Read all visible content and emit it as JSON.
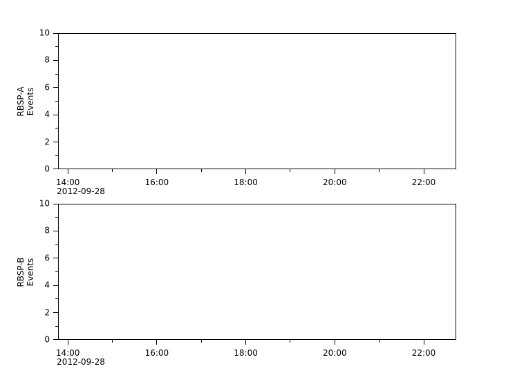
{
  "figure": {
    "background": "#ffffff",
    "axis_color": "#000000",
    "text_color": "#000000"
  },
  "chart_data": [
    {
      "type": "line",
      "title": "",
      "ylabel_lines": [
        "RBSP-A",
        "Events"
      ],
      "xlabel": "",
      "x_axis": {
        "kind": "time",
        "date_label": "2012-09-28",
        "range_hours": [
          13.78,
          22.73
        ],
        "major_ticks": [
          {
            "value": 14,
            "label": "14:00"
          },
          {
            "value": 16,
            "label": "16:00"
          },
          {
            "value": 18,
            "label": "18:00"
          },
          {
            "value": 20,
            "label": "20:00"
          },
          {
            "value": 22,
            "label": "22:00"
          }
        ],
        "minor_ticks": [
          15,
          17,
          19,
          21
        ]
      },
      "y_axis": {
        "range": [
          0,
          10
        ],
        "major_ticks": [
          {
            "value": 0,
            "label": "0"
          },
          {
            "value": 2,
            "label": "2"
          },
          {
            "value": 4,
            "label": "4"
          },
          {
            "value": 6,
            "label": "6"
          },
          {
            "value": 8,
            "label": "8"
          },
          {
            "value": 10,
            "label": "10"
          }
        ],
        "minor_ticks": [
          1,
          3,
          5,
          7,
          9
        ]
      },
      "grid": false,
      "legend": null,
      "series": []
    },
    {
      "type": "line",
      "title": "",
      "ylabel_lines": [
        "RBSP-B",
        "Events"
      ],
      "xlabel": "",
      "x_axis": {
        "kind": "time",
        "date_label": "2012-09-28",
        "range_hours": [
          13.78,
          22.73
        ],
        "major_ticks": [
          {
            "value": 14,
            "label": "14:00"
          },
          {
            "value": 16,
            "label": "16:00"
          },
          {
            "value": 18,
            "label": "18:00"
          },
          {
            "value": 20,
            "label": "20:00"
          },
          {
            "value": 22,
            "label": "22:00"
          }
        ],
        "minor_ticks": [
          15,
          17,
          19,
          21
        ]
      },
      "y_axis": {
        "range": [
          0,
          10
        ],
        "major_ticks": [
          {
            "value": 0,
            "label": "0"
          },
          {
            "value": 2,
            "label": "2"
          },
          {
            "value": 4,
            "label": "4"
          },
          {
            "value": 6,
            "label": "6"
          },
          {
            "value": 8,
            "label": "8"
          },
          {
            "value": 10,
            "label": "10"
          }
        ],
        "minor_ticks": [
          1,
          3,
          5,
          7,
          9
        ]
      },
      "grid": false,
      "legend": null,
      "series": []
    }
  ]
}
